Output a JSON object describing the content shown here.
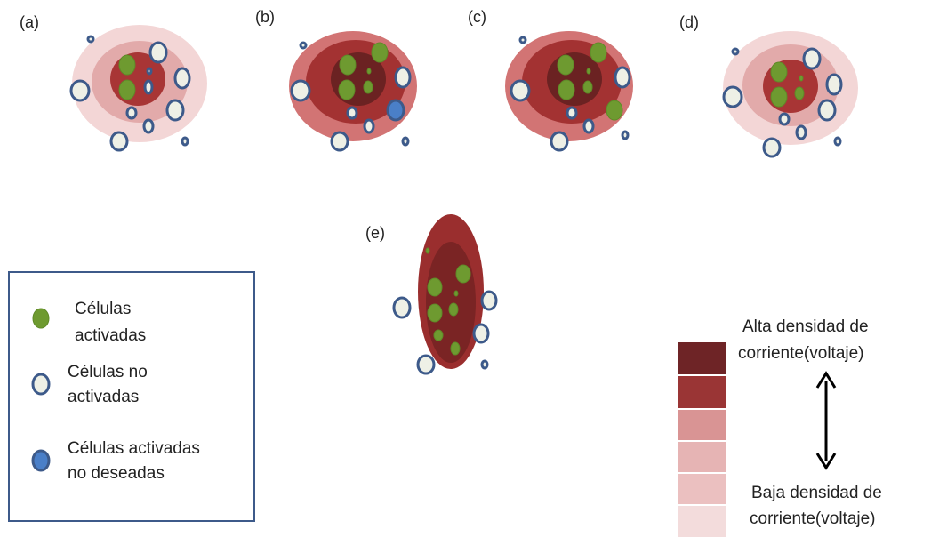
{
  "panels": [
    {
      "label": "(a)"
    },
    {
      "label": "(b)"
    },
    {
      "label": "(c)"
    },
    {
      "label": "(d)"
    },
    {
      "label": "(e)"
    }
  ],
  "legend": {
    "items": [
      {
        "lines": [
          "Células",
          "activadas"
        ]
      },
      {
        "lines": [
          "Células no",
          "activadas"
        ]
      },
      {
        "lines": [
          "Células activadas",
          "no deseadas"
        ]
      }
    ]
  },
  "scale": {
    "high": [
      "Alta densidad de",
      "corriente(voltaje)"
    ],
    "low": [
      "Baja densidad de",
      "corriente(voltaje)"
    ]
  }
}
